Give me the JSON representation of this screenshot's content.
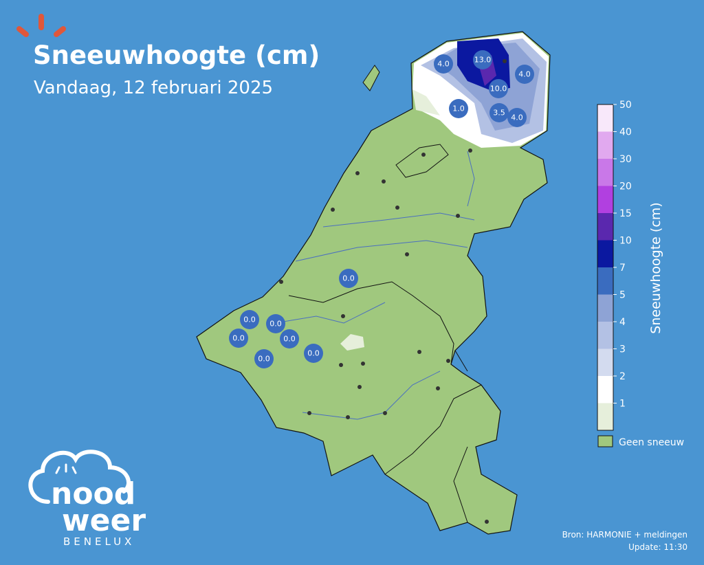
{
  "header": {
    "title": "Sneeuwhoogte (cm)",
    "subtitle": "Vandaag, 12 februari 2025"
  },
  "colorbar": {
    "label": "Sneeuwhoogte (cm)",
    "ticks": [
      1,
      2,
      3,
      4,
      5,
      7,
      10,
      15,
      20,
      30,
      40,
      50
    ],
    "colors": [
      "#e6efdb",
      "#ffffff",
      "#d3dbef",
      "#b3c1e4",
      "#8ea3d5",
      "#3a6cbf",
      "#0b18a0",
      "#5a28ae",
      "#b140e0",
      "#c978e8",
      "#e1a9ef",
      "#f8e8fa"
    ],
    "no_snow": {
      "label": "Geen sneeuw",
      "color": "#a0c87e"
    }
  },
  "stations": [
    "4.0",
    "13.0",
    "4.0",
    "10.0",
    "1.0",
    "3.5",
    "4.0",
    "0.0",
    "0.0",
    "0.0",
    "0.0",
    "0.0",
    "0.0",
    "0.0"
  ],
  "footer": {
    "source": "Bron: HARMONIE + meldingen",
    "update": "Update: 11:30"
  },
  "logo": {
    "line1": "nood",
    "line2": "weer",
    "line3": "BENELUX"
  }
}
